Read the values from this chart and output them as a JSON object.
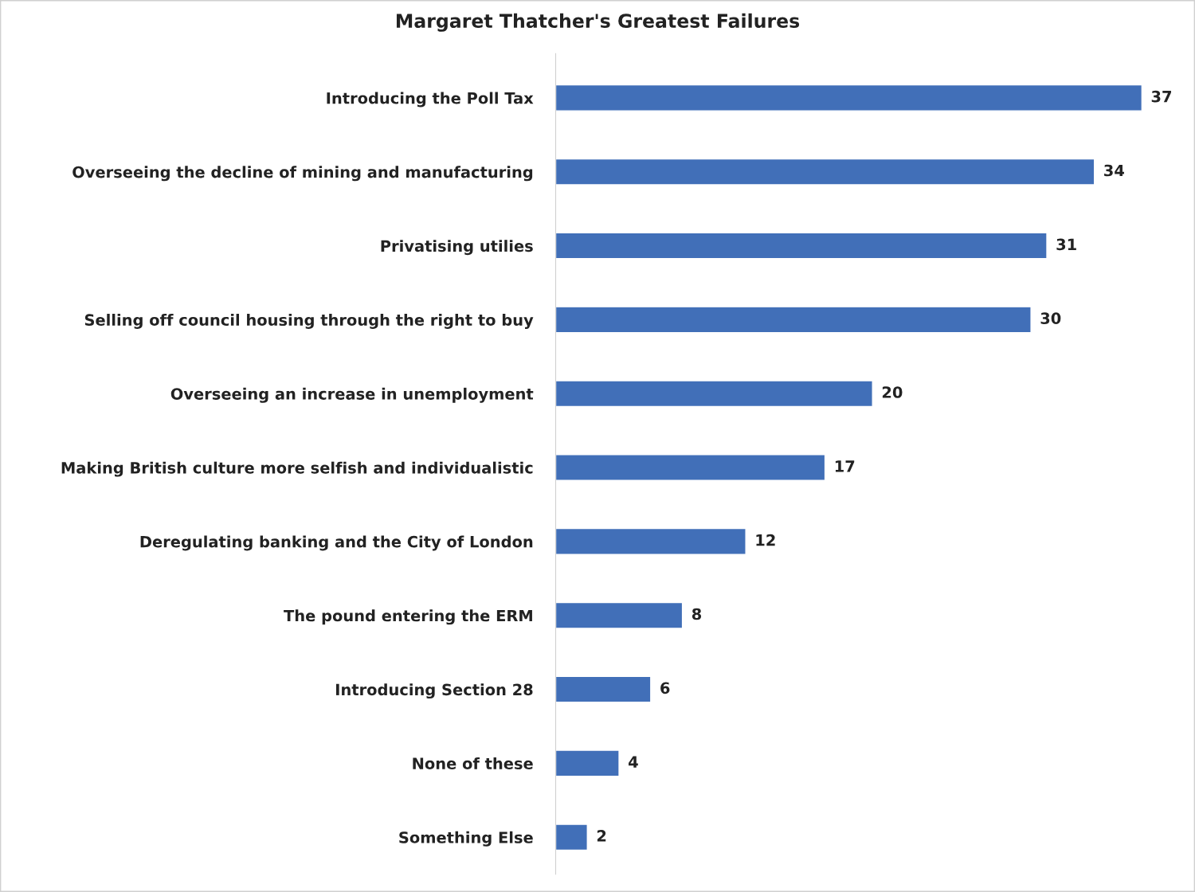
{
  "chart_data": {
    "type": "bar",
    "orientation": "horizontal",
    "title": "Margaret Thatcher's Greatest Failures",
    "categories": [
      "Introducing the Poll Tax",
      "Overseeing the decline of mining and manufacturing",
      "Privatising utilies",
      "Selling off council housing through the right to buy",
      "Overseeing an increase in unemployment",
      "Making British culture more selfish and individualistic",
      "Deregulating banking and the City of London",
      "The pound entering the ERM",
      "Introducing Section 28",
      "None of these",
      "Something Else"
    ],
    "values": [
      37,
      34,
      31,
      30,
      20,
      17,
      12,
      8,
      6,
      4,
      2
    ],
    "color": "#416fb8",
    "data_labels": true,
    "tick_labels": "y",
    "grid": false
  }
}
